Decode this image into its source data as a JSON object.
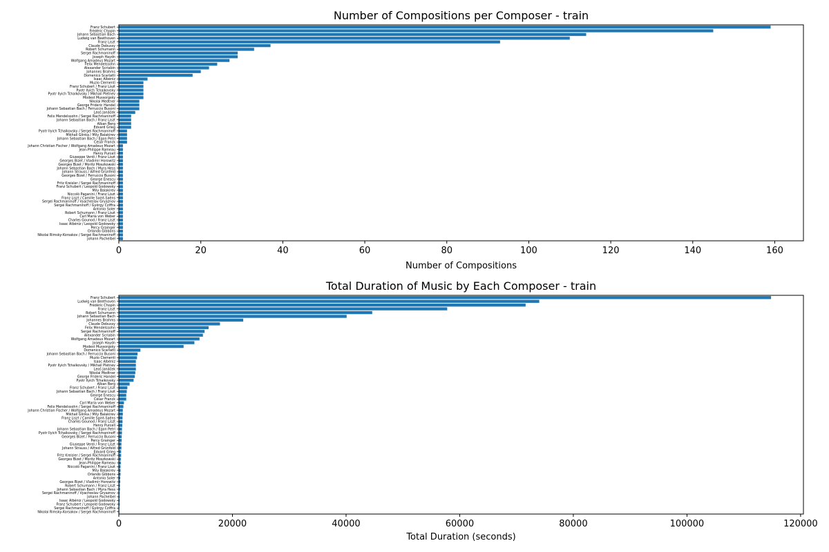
{
  "colors": {
    "bar": "#1f77b4",
    "axis": "#000000",
    "background": "#ffffff"
  },
  "chart_data": [
    {
      "type": "bar",
      "orientation": "horizontal",
      "title": "Number of Compositions per Composer - train",
      "xlabel": "Number of Compositions",
      "ylabel": "",
      "xlim": [
        0,
        167
      ],
      "xticks": [
        0,
        20,
        40,
        60,
        80,
        100,
        120,
        140,
        160
      ],
      "grid": false,
      "categories": [
        "Franz Schubert",
        "Frédéric Chopin",
        "Johann Sebastian Bach",
        "Ludwig van Beethoven",
        "Franz Liszt",
        "Claude Debussy",
        "Robert Schumann",
        "Sergei Rachmaninoff",
        "Joseph Haydn",
        "Wolfgang Amadeus Mozart",
        "Felix Mendelssohn",
        "Alexander Scriabin",
        "Johannes Brahms",
        "Domenico Scarlatti",
        "Isaac Albéniz",
        "Muzio Clementi",
        "Franz Schubert / Franz Liszt",
        "Pyotr Ilyich Tchaikovsky",
        "Pyotr Ilyich Tchaikovsky / Mikhail Pletnev",
        "Modest Mussorgsky",
        "Nikolai Medtner",
        "George Frideric Handel",
        "Johann Sebastian Bach / Ferruccio Busoni",
        "Leoš Janáček",
        "Felix Mendelssohn / Sergei Rachmaninoff",
        "Johann Sebastian Bach / Franz Liszt",
        "Alban Berg",
        "Edvard Grieg",
        "Pyotr Ilyich Tchaikovsky / Sergei Rachmaninoff",
        "Mikhail Glinka / Mily Balakirev",
        "Johann Sebastian Bach / Egon Petri",
        "César Franck",
        "Johann Christian Fischer / Wolfgang Amadeus Mozart",
        "Jean-Philippe Rameau",
        "Henry Purcell",
        "Giuseppe Verdi / Franz Liszt",
        "Georges Bizet / Vladimir Horowitz",
        "Georges Bizet / Moritz Moszkowski",
        "Johann Sebastian Bach / Myra Hess",
        "Johann Strauss / Alfred Grünfeld",
        "Georges Bizet / Ferruccio Busoni",
        "George Enescu",
        "Fritz Kreisler / Sergei Rachmaninoff",
        "Franz Schubert / Leopold Godowsky",
        "Mily Balakirev",
        "Niccolò Paganini / Franz Liszt",
        "Franz Liszt / Camille Saint-Saëns",
        "Sergei Rachmaninoff / Vyacheslav Gryaznov",
        "Sergei Rachmaninoff / György Cziffra",
        "Antonio Soler",
        "Robert Schumann / Franz Liszt",
        "Carl Maria von Weber",
        "Charles Gounod / Franz Liszt",
        "Isaac Albéniz / Leopold Godowsky",
        "Percy Grainger",
        "Orlando Gibbons",
        "Nikolai Rimsky-Korsakov / Sergei Rachmaninoff",
        "Johann Pachelbel"
      ],
      "values": [
        159,
        145,
        114,
        110,
        93,
        37,
        33,
        29,
        29,
        27,
        24,
        22,
        20,
        18,
        7,
        6,
        6,
        6,
        6,
        6,
        5,
        5,
        5,
        4,
        3,
        3,
        3,
        3,
        2,
        2,
        2,
        2,
        1,
        1,
        1,
        1,
        1,
        1,
        1,
        1,
        1,
        1,
        1,
        1,
        1,
        1,
        1,
        1,
        1,
        1,
        1,
        1,
        1,
        1,
        1,
        1,
        1,
        1
      ]
    },
    {
      "type": "bar",
      "orientation": "horizontal",
      "title": "Total Duration of Music by Each Composer  - train",
      "xlabel": "Total Duration (seconds)",
      "ylabel": "",
      "xlim": [
        0,
        120500
      ],
      "xticks": [
        0,
        20000,
        40000,
        60000,
        80000,
        100000,
        120000
      ],
      "grid": false,
      "categories": [
        "Franz Schubert",
        "Ludwig van Beethoven",
        "Frédéric Chopin",
        "Franz Liszt",
        "Robert Schumann",
        "Johann Sebastian Bach",
        "Johannes Brahms",
        "Claude Debussy",
        "Felix Mendelssohn",
        "Sergei Rachmaninoff",
        "Alexander Scriabin",
        "Wolfgang Amadeus Mozart",
        "Joseph Haydn",
        "Modest Mussorgsky",
        "Domenico Scarlatti",
        "Johann Sebastian Bach / Ferruccio Busoni",
        "Muzio Clementi",
        "Isaac Albéniz",
        "Pyotr Ilyich Tchaikovsky / Mikhail Pletnev",
        "Leoš Janáček",
        "Nikolai Medtner",
        "George Frideric Handel",
        "Pyotr Ilyich Tchaikovsky",
        "Alban Berg",
        "Franz Schubert / Franz Liszt",
        "Johann Sebastian Bach / Franz Liszt",
        "George Enescu",
        "César Franck",
        "Carl Maria von Weber",
        "Felix Mendelssohn / Sergei Rachmaninoff",
        "Johann Christian Fischer / Wolfgang Amadeus Mozart",
        "Mikhail Glinka / Mily Balakirev",
        "Franz Liszt / Camille Saint-Saëns",
        "Charles Gounod / Franz Liszt",
        "Henry Purcell",
        "Johann Sebastian Bach / Egon Petri",
        "Pyotr Ilyich Tchaikovsky / Sergei Rachmaninoff",
        "Georges Bizet / Ferruccio Busoni",
        "Percy Grainger",
        "Giuseppe Verdi / Franz Liszt",
        "Johann Strauss / Alfred Grünfeld",
        "Edvard Grieg",
        "Fritz Kreisler / Sergei Rachmaninoff",
        "Georges Bizet / Moritz Moszkowski",
        "Jean-Philippe Rameau",
        "Niccolò Paganini / Franz Liszt",
        "Mily Balakirev",
        "Orlando Gibbons",
        "Antonio Soler",
        "Georges Bizet / Vladimir Horowitz",
        "Robert Schumann / Franz Liszt",
        "Johann Sebastian Bach / Myra Hess",
        "Sergei Rachmaninoff / Vyacheslav Gryaznov",
        "Johann Pachelbel",
        "Isaac Albéniz / Leopold Godowsky",
        "Franz Schubert / Leopold Godowsky",
        "Sergei Rachmaninoff / György Cziffra",
        "Nikolai Rimsky-Korsakov / Sergei Rachmaninoff"
      ],
      "values": [
        114800,
        74000,
        71600,
        57800,
        44600,
        40100,
        21900,
        17800,
        15800,
        15100,
        14800,
        14200,
        13300,
        11400,
        3800,
        3300,
        3200,
        3000,
        3000,
        3000,
        2900,
        2800,
        2600,
        1900,
        1500,
        1400,
        1300,
        1300,
        900,
        800,
        700,
        700,
        650,
        650,
        600,
        550,
        550,
        500,
        500,
        450,
        450,
        400,
        400,
        350,
        350,
        300,
        300,
        300,
        250,
        250,
        200,
        200,
        150,
        150,
        150,
        150,
        100,
        100
      ]
    }
  ]
}
